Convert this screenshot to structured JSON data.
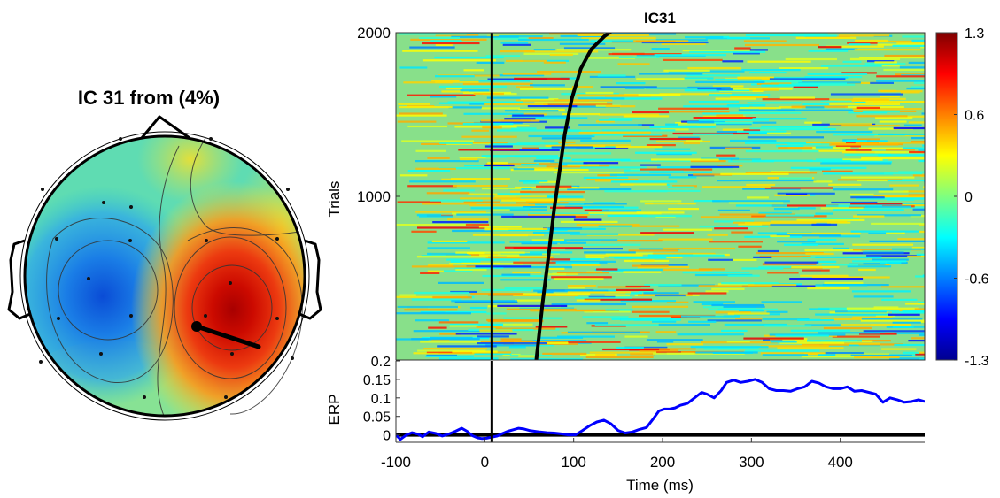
{
  "topo_title": "IC 31 from  (4%)",
  "chart_data": [
    {
      "type": "topoplot",
      "title": "IC 31 from  (4%)",
      "colormap": "jet",
      "dipole": {
        "present": true
      },
      "extrema": [
        {
          "sign": "negative",
          "region": "left-central"
        },
        {
          "sign": "positive",
          "region": "right-central"
        }
      ]
    },
    {
      "type": "heatmap",
      "title": "IC31",
      "ylabel": "Trials",
      "ylim": [
        0,
        2000
      ],
      "yticks": [
        1000,
        2000
      ],
      "xlim": [
        -100,
        495
      ],
      "colorbar": {
        "min": -1.3,
        "max": 1.3,
        "ticks": [
          "1.3",
          "0.6",
          "0",
          "-0.6",
          "-1.3"
        ]
      },
      "event_line_ms": 8,
      "sorting_curve": {
        "x": [
          58,
          65,
          72,
          78,
          84,
          90,
          98,
          108,
          120,
          135,
          148
        ],
        "y": [
          0,
          350,
          650,
          920,
          1150,
          1380,
          1600,
          1780,
          1900,
          1980,
          2030
        ]
      }
    },
    {
      "type": "line",
      "xlabel": "Time (ms)",
      "ylabel": "ERP",
      "xlim": [
        -100,
        495
      ],
      "ylim": [
        -0.02,
        0.2
      ],
      "xticks": [
        -100,
        0,
        100,
        200,
        300,
        400
      ],
      "yticks": [
        "0",
        "0.05",
        "0.1",
        "0.15",
        "0.2"
      ],
      "event_line_ms": 8,
      "series": [
        {
          "color": "#0000ff",
          "x": [
            -100,
            -95,
            -88,
            -82,
            -75,
            -70,
            -63,
            -55,
            -48,
            -40,
            -33,
            -26,
            -20,
            -14,
            -8,
            -3,
            2,
            8,
            14,
            20,
            26,
            32,
            38,
            44,
            50,
            56,
            62,
            70,
            78,
            86,
            94,
            102,
            110,
            118,
            126,
            134,
            142,
            150,
            158,
            166,
            174,
            182,
            190,
            196,
            202,
            208,
            214,
            220,
            228,
            236,
            244,
            250,
            258,
            266,
            272,
            280,
            288,
            296,
            304,
            312,
            320,
            328,
            336,
            344,
            352,
            360,
            368,
            376,
            384,
            392,
            400,
            408,
            416,
            424,
            432,
            440,
            448,
            456,
            464,
            472,
            480,
            488,
            495
          ],
          "y": [
            0.0,
            -0.012,
            0.0,
            0.006,
            0.002,
            -0.005,
            0.008,
            0.004,
            -0.003,
            0.003,
            0.01,
            0.018,
            0.01,
            -0.002,
            -0.008,
            -0.01,
            -0.009,
            -0.006,
            -0.003,
            0.004,
            0.01,
            0.014,
            0.018,
            0.016,
            0.012,
            0.01,
            0.008,
            0.006,
            0.005,
            0.003,
            0.0,
            0.0,
            0.012,
            0.025,
            0.035,
            0.04,
            0.03,
            0.012,
            0.005,
            0.008,
            0.015,
            0.02,
            0.045,
            0.065,
            0.07,
            0.07,
            0.073,
            0.08,
            0.085,
            0.1,
            0.115,
            0.11,
            0.1,
            0.12,
            0.142,
            0.148,
            0.142,
            0.145,
            0.15,
            0.142,
            0.125,
            0.12,
            0.12,
            0.118,
            0.125,
            0.13,
            0.145,
            0.14,
            0.13,
            0.125,
            0.125,
            0.13,
            0.118,
            0.12,
            0.115,
            0.11,
            0.088,
            0.1,
            0.095,
            0.088,
            0.09,
            0.095,
            0.09
          ]
        }
      ]
    }
  ]
}
